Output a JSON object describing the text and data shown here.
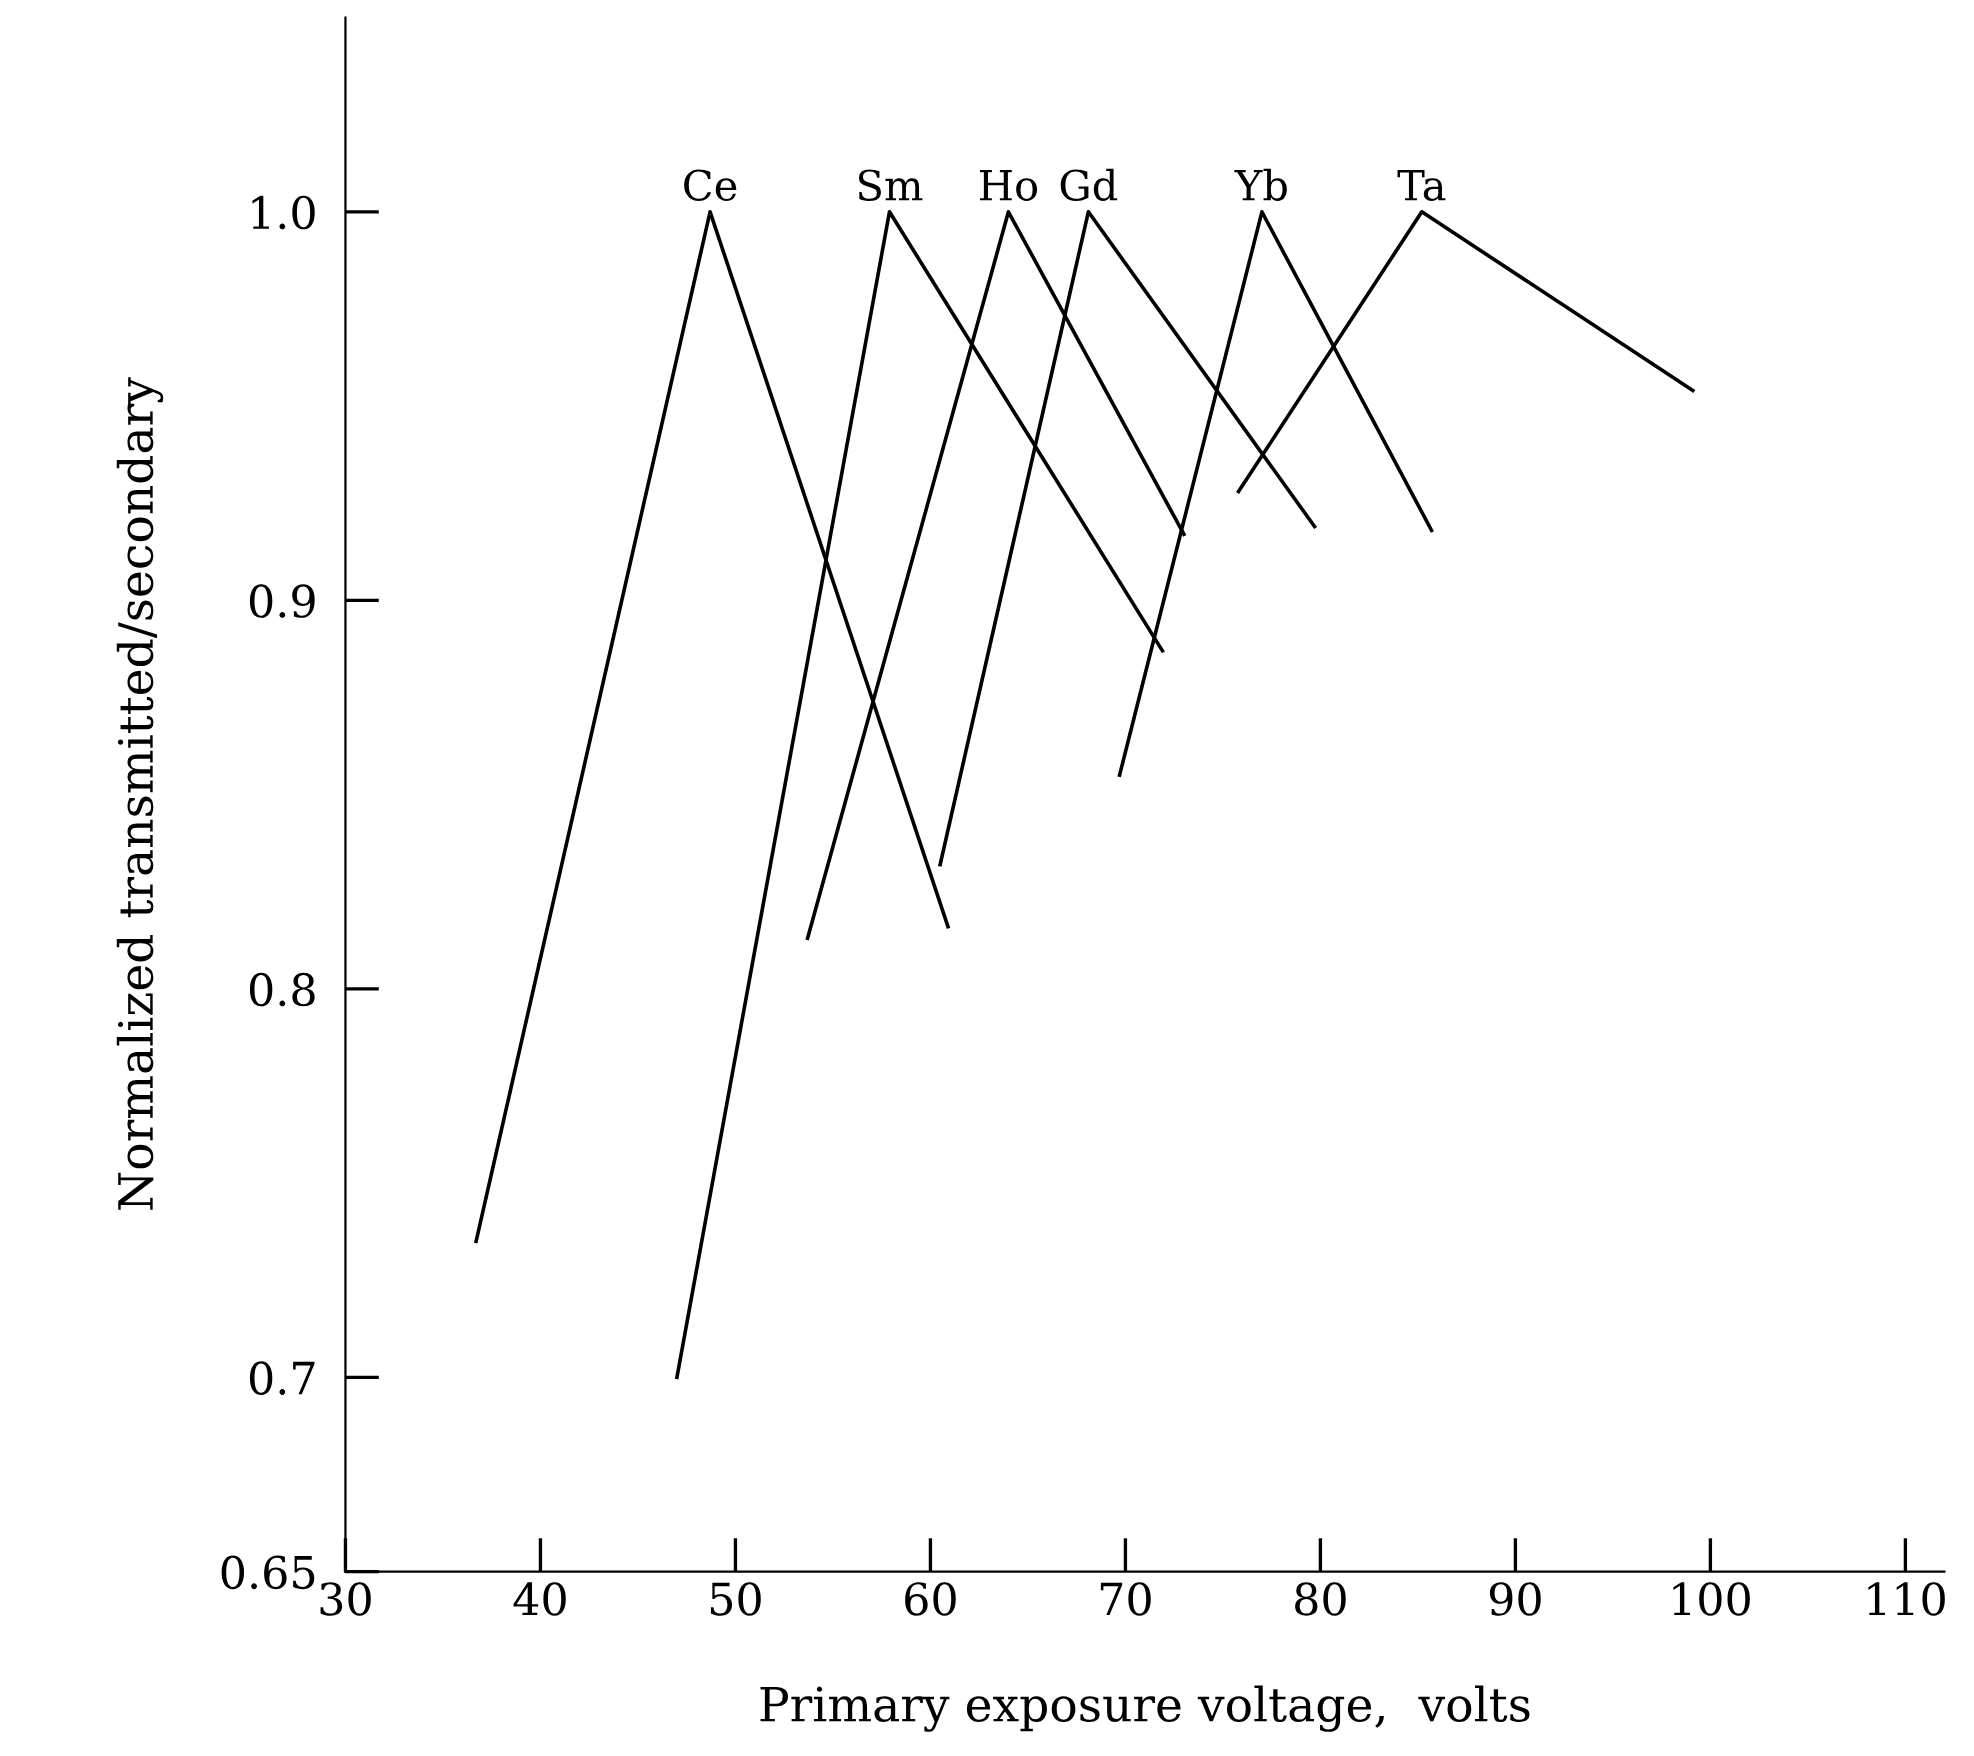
{
  "chart_data": {
    "type": "line",
    "xlabel": "Primary exposure voltage,  volts",
    "ylabel": "Normalized transmitted/secondary",
    "xlim": [
      30,
      112
    ],
    "ylim": [
      0.65,
      1.05
    ],
    "xticks": [
      30,
      40,
      50,
      60,
      70,
      80,
      90,
      100,
      110
    ],
    "yticks": [
      0.65,
      0.7,
      0.8,
      0.9,
      {
        "value": 1.0,
        "label": "1.0"
      }
    ],
    "grid": false,
    "legend": false,
    "marker": "none",
    "line_style": "solid",
    "series": [
      {
        "name": "Ce",
        "color": "#000000",
        "x": [
          36.7,
          48.7,
          60.9
        ],
        "values": [
          0.735,
          1.0,
          0.816
        ]
      },
      {
        "name": "Sm",
        "color": "#000000",
        "x": [
          47,
          57.9,
          71.9
        ],
        "values": [
          0.7,
          1.0,
          0.887
        ]
      },
      {
        "name": "Ho",
        "color": "#000000",
        "x": [
          53.7,
          64,
          73
        ],
        "values": [
          0.813,
          1.0,
          0.917
        ]
      },
      {
        "name": "Gd",
        "color": "#000000",
        "x": [
          60.5,
          68.1,
          79.7
        ],
        "values": [
          0.832,
          1.0,
          0.919
        ]
      },
      {
        "name": "Yb",
        "color": "#000000",
        "x": [
          69.7,
          77,
          85.7
        ],
        "values": [
          0.855,
          1.0,
          0.918
        ]
      },
      {
        "name": "Ta",
        "color": "#000000",
        "x": [
          75.8,
          85.2,
          99.1
        ],
        "values": [
          0.928,
          1.0,
          0.954
        ]
      }
    ]
  }
}
